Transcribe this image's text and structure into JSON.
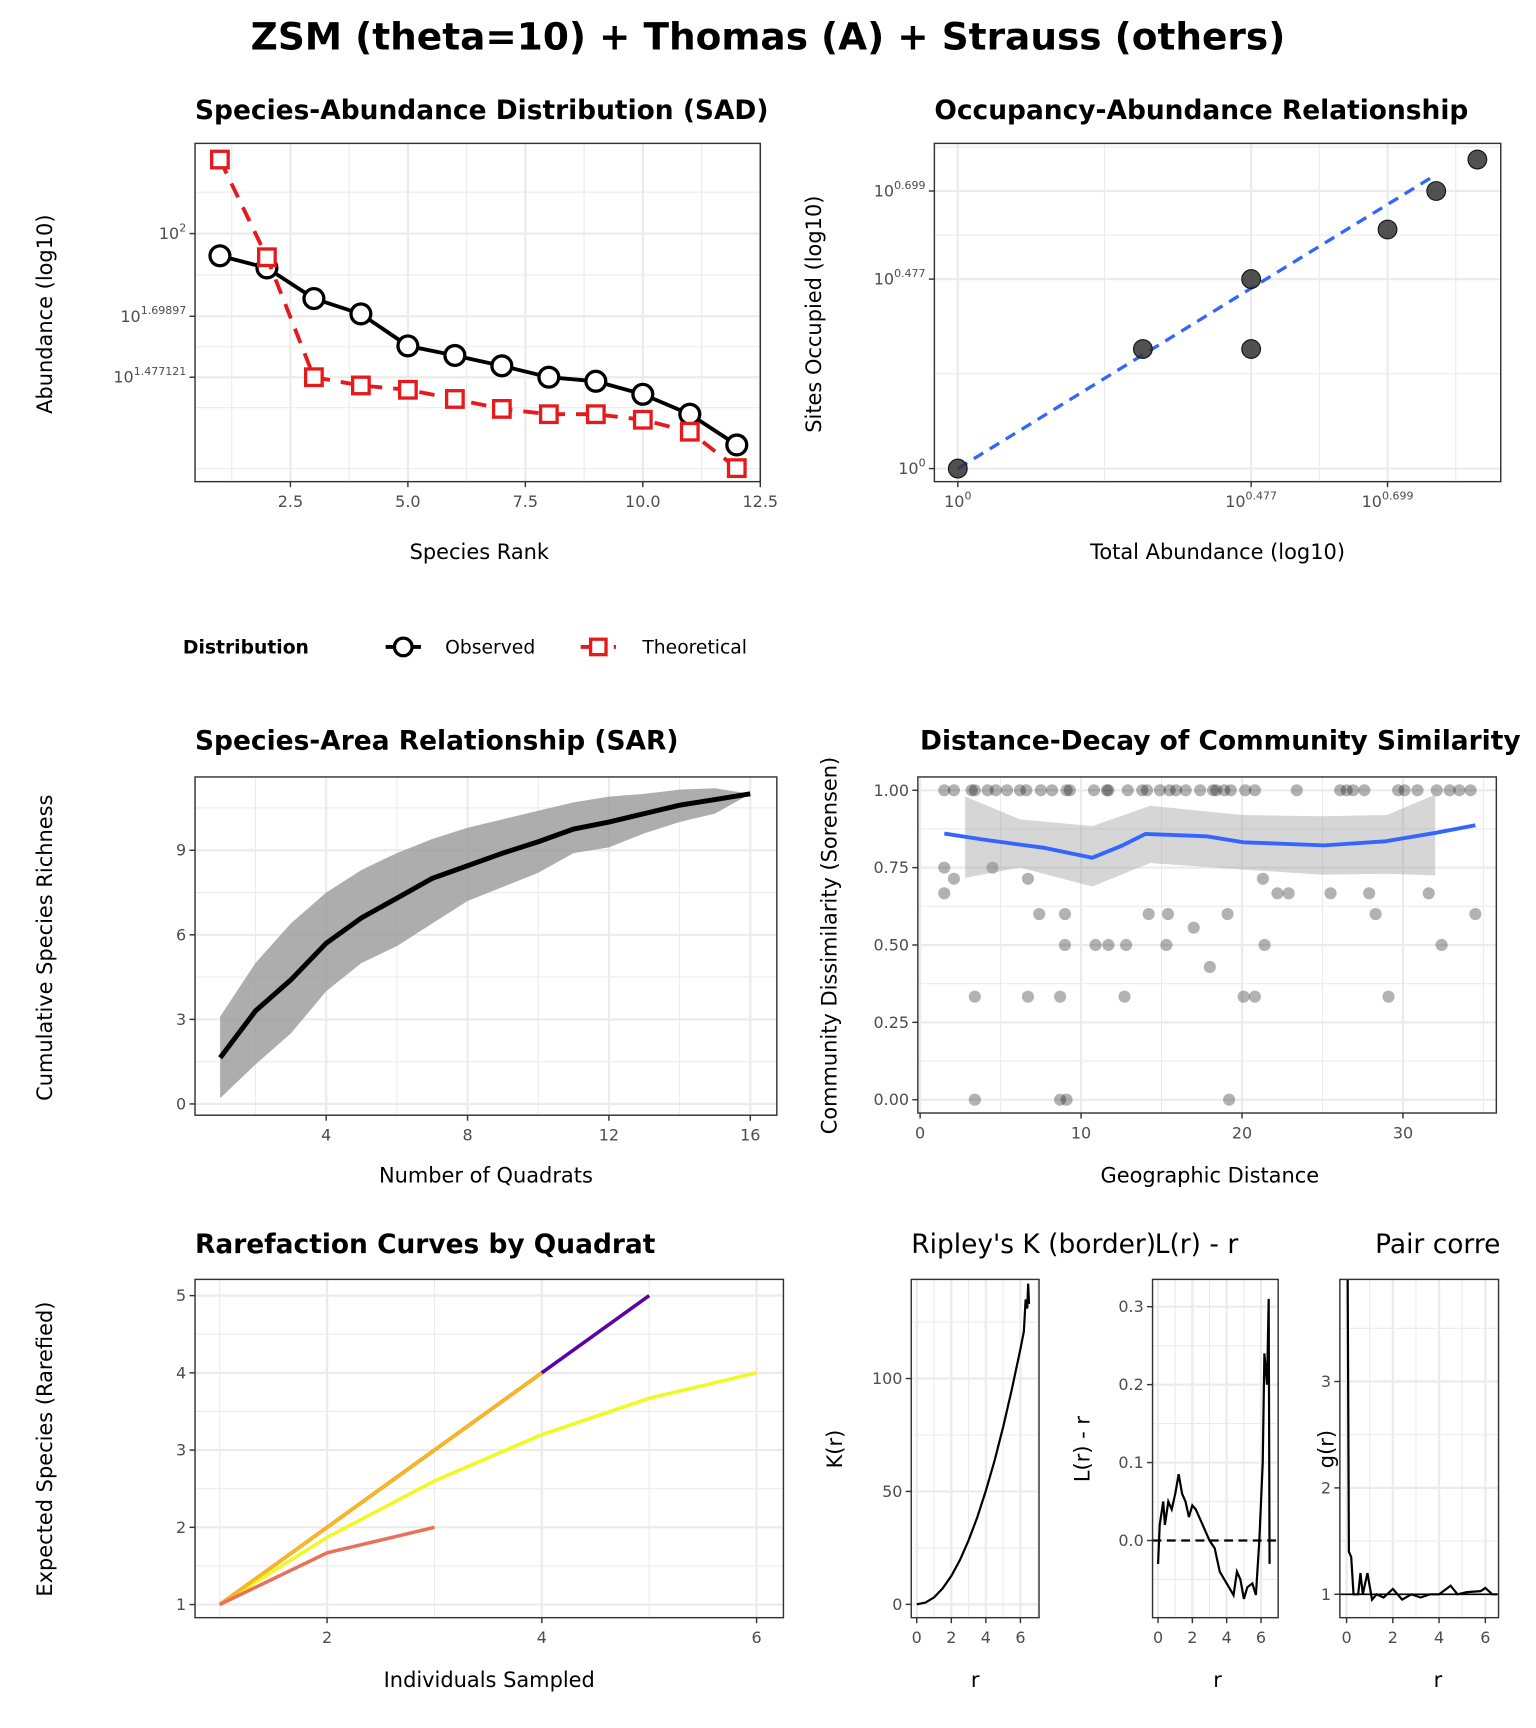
{
  "suptitle": "ZSM (theta=10) + Thomas (A) + Strauss (others)",
  "legend": {
    "title": "Distribution",
    "items": [
      "Observed",
      "Theoretical"
    ],
    "position": "bottom"
  },
  "colors": {
    "observed": "#000000",
    "theoretical": "#e41a1c",
    "fit": "#3366ff",
    "points": "#333333",
    "band": "#999999"
  },
  "chart_data": [
    {
      "id": "sad",
      "type": "line",
      "title": "Species-Abundance Distribution (SAD)",
      "xlabel": "Species Rank",
      "ylabel": "Abundance (log10)",
      "x_scale": "linear",
      "y_scale": "log10",
      "xlim": [
        0.47,
        12.5
      ],
      "ylim": [
        12.5,
        213
      ],
      "x_ticks": [
        2.5,
        5,
        7.5,
        10,
        12.5
      ],
      "x_tick_labels": [
        "2.5",
        "5.0",
        "7.5",
        "10.0",
        "12.5"
      ],
      "y_ticks": [
        30,
        50,
        100
      ],
      "y_tick_labels": [
        {
          "base": "10",
          "exp": "1.477121"
        },
        {
          "base": "10",
          "exp": "1.69897"
        },
        {
          "base": "10",
          "exp": "2"
        }
      ],
      "grid": true,
      "x": [
        1,
        2,
        3,
        4,
        5,
        6,
        7,
        8,
        9,
        10,
        11,
        12
      ],
      "series": [
        {
          "name": "Observed",
          "marker": "circle",
          "linestyle": "solid",
          "values": [
            83,
            75,
            58,
            51,
            39,
            36,
            33,
            30,
            29,
            26,
            22,
            17
          ]
        },
        {
          "name": "Theoretical",
          "marker": "square",
          "linestyle": "dashed",
          "values": [
            186,
            82,
            30,
            28,
            27,
            25,
            23,
            22,
            22,
            21,
            19,
            14
          ]
        }
      ]
    },
    {
      "id": "occupancy",
      "type": "scatter",
      "title": "Occupancy-Abundance Relationship",
      "xlabel": "Total Abundance (log10)",
      "ylabel": "Sites Occupied (log10)",
      "x_scale": "log10",
      "y_scale": "log10",
      "xlim": [
        0.916,
        7.64
      ],
      "ylim": [
        0.927,
        6.59
      ],
      "x_ticks": [
        1,
        3,
        5
      ],
      "x_tick_labels": [
        {
          "base": "10",
          "exp": "0"
        },
        {
          "base": "10",
          "exp": "0.477"
        },
        {
          "base": "10",
          "exp": "0.699"
        }
      ],
      "y_ticks": [
        1,
        3,
        5
      ],
      "y_tick_labels": [
        {
          "base": "10",
          "exp": "0"
        },
        {
          "base": "10",
          "exp": "0.477"
        },
        {
          "base": "10",
          "exp": "0.699"
        }
      ],
      "grid": true,
      "points": [
        [
          1,
          1
        ],
        [
          2,
          2
        ],
        [
          3,
          3
        ],
        [
          3,
          2
        ],
        [
          5,
          4
        ],
        [
          6,
          5
        ],
        [
          7,
          6
        ]
      ],
      "fit": {
        "type": "linear (log-log)",
        "linestyle": "dashed",
        "x": [
          1,
          6
        ],
        "y": [
          1,
          5.5
        ]
      }
    },
    {
      "id": "sar",
      "type": "area",
      "title": "Species-Area Relationship (SAR)",
      "xlabel": "Number of Quadrats",
      "ylabel": "Cumulative Species Richness",
      "xlim": [
        0.29,
        16.75
      ],
      "ylim": [
        -0.4,
        11.6
      ],
      "x_ticks": [
        4,
        8,
        12,
        16
      ],
      "x_tick_labels": [
        "4",
        "8",
        "12",
        "16"
      ],
      "y_ticks": [
        0,
        3,
        6,
        9
      ],
      "y_tick_labels": [
        "0",
        "3",
        "6",
        "9"
      ],
      "grid": true,
      "x": [
        1,
        2,
        3,
        4,
        5,
        6,
        7,
        8,
        9,
        10,
        11,
        12,
        13,
        14,
        15,
        16
      ],
      "mean": [
        1.64,
        3.3,
        4.4,
        5.7,
        6.6,
        7.3,
        8.0,
        8.45,
        8.9,
        9.3,
        9.75,
        10.0,
        10.3,
        10.6,
        10.8,
        11.0
      ],
      "upper": [
        3.1,
        5.0,
        6.4,
        7.5,
        8.3,
        8.9,
        9.4,
        9.8,
        10.1,
        10.4,
        10.7,
        10.9,
        11.0,
        11.15,
        11.2,
        11.0
      ],
      "lower": [
        0.2,
        1.4,
        2.5,
        4.0,
        5.0,
        5.6,
        6.4,
        7.2,
        7.7,
        8.2,
        8.9,
        9.1,
        9.6,
        10.0,
        10.3,
        11.0
      ]
    },
    {
      "id": "distance_decay",
      "type": "scatter",
      "title": "Distance-Decay of Community Similarity",
      "xlabel": "Geographic Distance",
      "ylabel": "Community Dissimilarity (Sorensen)",
      "xlim": [
        -0.14,
        35.8
      ],
      "ylim": [
        -0.043,
        1.043
      ],
      "x_ticks": [
        0,
        10,
        20,
        30
      ],
      "x_tick_labels": [
        "0",
        "10",
        "20",
        "30"
      ],
      "y_ticks": [
        0,
        0.25,
        0.5,
        0.75,
        1
      ],
      "y_tick_labels": [
        "0.00",
        "0.25",
        "0.50",
        "0.75",
        "1.00"
      ],
      "grid": true,
      "points": [
        [
          1.5,
          1
        ],
        [
          2.1,
          1
        ],
        [
          3.2,
          1
        ],
        [
          3.4,
          1
        ],
        [
          4.2,
          1
        ],
        [
          4.7,
          1
        ],
        [
          5.4,
          1
        ],
        [
          6.2,
          1
        ],
        [
          6.6,
          1
        ],
        [
          7.5,
          1
        ],
        [
          8.2,
          1
        ],
        [
          9.1,
          1
        ],
        [
          9.3,
          1
        ],
        [
          10.8,
          1
        ],
        [
          11.6,
          1
        ],
        [
          11.7,
          1
        ],
        [
          12.9,
          1
        ],
        [
          13.8,
          1
        ],
        [
          14.1,
          1
        ],
        [
          14.9,
          1
        ],
        [
          15.5,
          1
        ],
        [
          15.9,
          1
        ],
        [
          16.5,
          1
        ],
        [
          17.4,
          1
        ],
        [
          18.2,
          1
        ],
        [
          18.4,
          1
        ],
        [
          18.9,
          1
        ],
        [
          19.3,
          1
        ],
        [
          20.2,
          1
        ],
        [
          20.8,
          1
        ],
        [
          23.4,
          1
        ],
        [
          26.1,
          1
        ],
        [
          26.5,
          1
        ],
        [
          26.9,
          1
        ],
        [
          27.6,
          1
        ],
        [
          29.7,
          1
        ],
        [
          30.1,
          1
        ],
        [
          30.9,
          1
        ],
        [
          32.1,
          1
        ],
        [
          32.9,
          1
        ],
        [
          33.5,
          1
        ],
        [
          34.2,
          1
        ],
        [
          1.5,
          0.75
        ],
        [
          4.5,
          0.75
        ],
        [
          2.1,
          0.714
        ],
        [
          6.7,
          0.714
        ],
        [
          21.3,
          0.714
        ],
        [
          1.5,
          0.667
        ],
        [
          22.2,
          0.667
        ],
        [
          22.9,
          0.667
        ],
        [
          25.5,
          0.667
        ],
        [
          27.9,
          0.667
        ],
        [
          31.6,
          0.667
        ],
        [
          7.4,
          0.6
        ],
        [
          9.0,
          0.6
        ],
        [
          14.2,
          0.6
        ],
        [
          15.4,
          0.6
        ],
        [
          19.1,
          0.6
        ],
        [
          28.3,
          0.6
        ],
        [
          34.5,
          0.6
        ],
        [
          17.0,
          0.556
        ],
        [
          9.0,
          0.5
        ],
        [
          10.9,
          0.5
        ],
        [
          11.7,
          0.5
        ],
        [
          12.8,
          0.5
        ],
        [
          15.3,
          0.5
        ],
        [
          21.4,
          0.5
        ],
        [
          32.4,
          0.5
        ],
        [
          18.0,
          0.429
        ],
        [
          3.4,
          0.333
        ],
        [
          6.7,
          0.333
        ],
        [
          8.7,
          0.333
        ],
        [
          12.7,
          0.333
        ],
        [
          20.1,
          0.333
        ],
        [
          20.8,
          0.333
        ],
        [
          29.1,
          0.333
        ],
        [
          3.4,
          0
        ],
        [
          8.7,
          0
        ],
        [
          9.1,
          0
        ],
        [
          19.2,
          0
        ]
      ],
      "smooth": {
        "x": [
          1.5,
          4,
          7.7,
          10.7,
          12.5,
          14.0,
          17.8,
          20.1,
          25.1,
          28.9,
          32,
          34.5
        ],
        "y": [
          0.86,
          0.84,
          0.814,
          0.782,
          0.82,
          0.859,
          0.851,
          0.832,
          0.822,
          0.835,
          0.862,
          0.887
        ]
      },
      "band": {
        "x": [
          2.8,
          6.2,
          10.7,
          14.3,
          20,
          25,
          29,
          32
        ],
        "upper": [
          0.98,
          0.906,
          0.884,
          0.95,
          0.92,
          0.916,
          0.92,
          0.986
        ],
        "lower": [
          0.717,
          0.75,
          0.689,
          0.765,
          0.744,
          0.727,
          0.73,
          0.725
        ]
      }
    },
    {
      "id": "rarefaction",
      "type": "line",
      "title": "Rarefaction Curves by Quadrat",
      "xlabel": "Individuals Sampled",
      "ylabel": "Expected Species (Rarefied)",
      "xlim": [
        0.77,
        6.25
      ],
      "ylim": [
        0.83,
        5.21
      ],
      "x_ticks": [
        2,
        4,
        6
      ],
      "x_tick_labels": [
        "2",
        "4",
        "6"
      ],
      "y_ticks": [
        1,
        2,
        3,
        4,
        5
      ],
      "y_tick_labels": [
        "1",
        "2",
        "3",
        "4",
        "5"
      ],
      "grid": true,
      "series": [
        {
          "color": "#5c01a6",
          "x": [
            1,
            2,
            3,
            4,
            5
          ],
          "values": [
            1,
            2,
            3,
            4,
            5
          ]
        },
        {
          "color": "#f0f921",
          "x": [
            1,
            2,
            3,
            4,
            5,
            6
          ],
          "values": [
            1,
            1.87,
            2.6,
            3.2,
            3.67,
            4.0
          ]
        },
        {
          "color": "#fbb61a",
          "x": [
            1,
            2,
            3,
            4
          ],
          "values": [
            1,
            2,
            3,
            4
          ]
        },
        {
          "color": "#e97158",
          "x": [
            1,
            2,
            3
          ],
          "values": [
            1,
            1.67,
            2
          ]
        }
      ]
    },
    {
      "id": "ripley_k",
      "type": "line",
      "title": "Ripley's K (border)",
      "xlabel": "r",
      "ylabel": "K(r)",
      "xlim": [
        -0.32,
        7.08
      ],
      "ylim": [
        -5.9,
        143.9
      ],
      "x_ticks": [
        0,
        2,
        4,
        6
      ],
      "x_tick_labels": [
        "0",
        "2",
        "4",
        "6"
      ],
      "y_ticks": [
        0,
        50,
        100
      ],
      "y_tick_labels": [
        "0",
        "50",
        "100"
      ],
      "grid": true,
      "x": [
        0,
        0.5,
        1,
        1.5,
        2,
        2.5,
        3,
        3.5,
        4,
        4.5,
        5,
        5.5,
        6,
        6.2,
        6.3,
        6.4,
        6.45,
        6.5
      ],
      "values": [
        0,
        0.8,
        3.1,
        7.1,
        12.6,
        19.6,
        28.3,
        38.5,
        50.3,
        63.6,
        78.5,
        95.0,
        113.1,
        120.8,
        135,
        131,
        142,
        133
      ]
    },
    {
      "id": "l_function",
      "type": "line",
      "title": "L(r) - r",
      "xlabel": "r",
      "ylabel": "L(r) - r",
      "xlim": [
        -0.32,
        7.0
      ],
      "ylim": [
        -0.099,
        0.335
      ],
      "x_ticks": [
        0,
        2,
        4,
        6
      ],
      "x_tick_labels": [
        "0",
        "2",
        "4",
        "6"
      ],
      "y_ticks": [
        0,
        0.1,
        0.2,
        0.3
      ],
      "y_tick_labels": [
        "0.0",
        "0.1",
        "0.2",
        "0.3"
      ],
      "grid": true,
      "reference_line": 0,
      "x": [
        0,
        0.1,
        0.3,
        0.4,
        0.6,
        0.8,
        1.0,
        1.2,
        1.4,
        1.6,
        1.8,
        2.0,
        2.2,
        2.6,
        3.0,
        3.3,
        3.6,
        4.0,
        4.4,
        4.6,
        4.8,
        5.0,
        5.2,
        5.5,
        5.7,
        5.9,
        6.1,
        6.2,
        6.35,
        6.45,
        6.5
      ],
      "values": [
        -0.03,
        0.02,
        0.05,
        0.02,
        0.05,
        0.04,
        0.06,
        0.085,
        0.06,
        0.05,
        0.03,
        0.045,
        0.04,
        0.02,
        0.0,
        -0.01,
        -0.04,
        -0.055,
        -0.07,
        -0.04,
        -0.05,
        -0.075,
        -0.06,
        -0.055,
        -0.07,
        0.0,
        0.1,
        0.24,
        0.2,
        0.31,
        -0.03
      ]
    },
    {
      "id": "pair_correlation",
      "type": "line",
      "title": "Pair corre",
      "xlabel": "r",
      "ylabel": "g(r)",
      "xlim": [
        -0.29,
        6.57
      ],
      "ylim": [
        0.78,
        3.96
      ],
      "x_ticks": [
        0,
        2,
        4,
        6
      ],
      "x_tick_labels": [
        "0",
        "2",
        "4",
        "6"
      ],
      "y_ticks": [
        1,
        2,
        3
      ],
      "y_tick_labels": [
        "1",
        "2",
        "3"
      ],
      "grid": true,
      "reference_line": 1,
      "x": [
        0,
        0.05,
        0.1,
        0.2,
        0.3,
        0.5,
        0.6,
        0.7,
        0.9,
        1.1,
        1.3,
        1.6,
        2.0,
        2.4,
        2.8,
        3.2,
        3.6,
        4.0,
        4.5,
        4.8,
        5.2,
        5.8,
        6.0,
        6.3,
        6.5
      ],
      "values": [
        4.5,
        3.96,
        1.4,
        1.35,
        1.0,
        1.0,
        1.2,
        1.0,
        1.2,
        0.95,
        1.0,
        0.97,
        1.05,
        0.95,
        1.0,
        0.97,
        1.0,
        1.0,
        1.08,
        1.0,
        1.02,
        1.03,
        1.06,
        1.0,
        1.0
      ]
    }
  ]
}
